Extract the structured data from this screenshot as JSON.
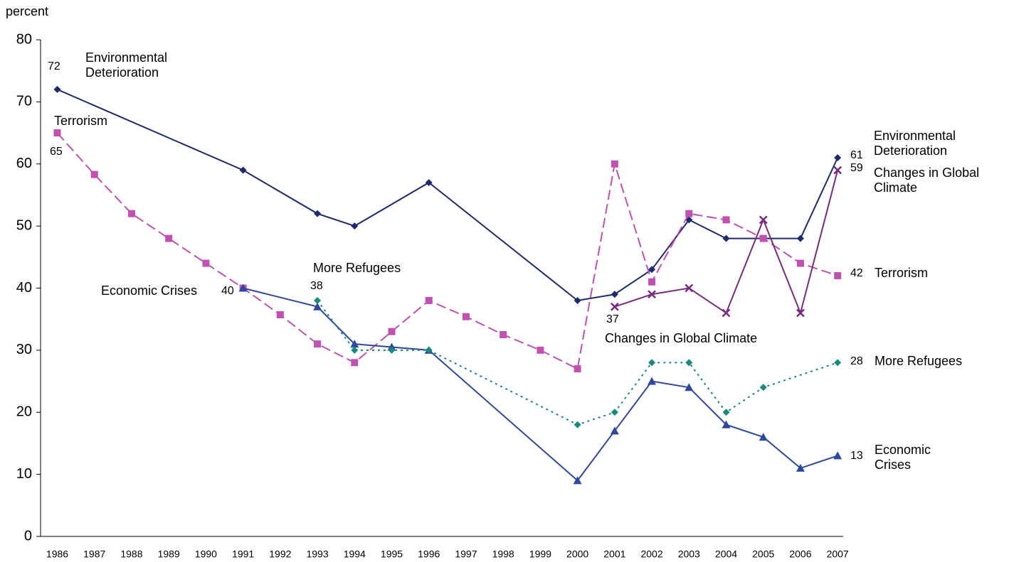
{
  "chart_data": {
    "type": "line",
    "y_label": "percent",
    "xlim": [
      1985.55,
      2007.15
    ],
    "ylim": [
      0,
      80
    ],
    "xticks": [
      1986,
      1987,
      1988,
      1989,
      1990,
      1991,
      1992,
      1993,
      1994,
      1995,
      1996,
      1997,
      1998,
      1999,
      2000,
      2001,
      2002,
      2003,
      2004,
      2005,
      2006,
      2007
    ],
    "yticks": [
      0,
      10,
      20,
      30,
      40,
      50,
      60,
      70,
      80
    ],
    "series": [
      {
        "name": "Environmental Deterioration",
        "color": "#1f2a6e",
        "dash": "solid",
        "marker": "diamond",
        "x": [
          1986,
          1991,
          1993,
          1994,
          1996,
          2000,
          2001,
          2002,
          2003,
          2004,
          2006,
          2007
        ],
        "values": [
          72,
          59,
          52,
          50,
          57,
          38,
          39,
          43,
          51,
          48,
          48,
          61
        ]
      },
      {
        "name": "Terrorism",
        "color": "#c150b0",
        "dash": "dashed",
        "marker": "square",
        "x": [
          1986,
          1987,
          1988,
          1989,
          1990,
          1991,
          1992,
          1993,
          1994,
          1995,
          1996,
          1997,
          1998,
          1999,
          2000,
          2001,
          2002,
          2003,
          2004,
          2005,
          2006,
          2007
        ],
        "values": [
          65,
          58.3,
          52,
          48,
          44,
          40,
          35.7,
          31,
          28,
          33,
          38,
          35.4,
          32.5,
          30,
          27,
          60,
          41,
          52,
          51,
          48,
          44,
          42
        ]
      },
      {
        "name": "Economic Crises",
        "color": "#2e47a0",
        "dash": "solid",
        "marker": "triangle",
        "x": [
          1991,
          1993,
          1994,
          1995,
          1996,
          2000,
          2001,
          2002,
          2003,
          2004,
          2005,
          2006,
          2007
        ],
        "values": [
          40,
          37,
          31,
          30.5,
          30,
          9,
          17,
          25,
          24,
          18,
          16,
          11,
          13
        ]
      },
      {
        "name": "More Refugees",
        "color": "#178a80",
        "dash": "dotted",
        "marker": "diamond",
        "x": [
          1993,
          1994,
          1995,
          1996,
          2000,
          2001,
          2002,
          2003,
          2004,
          2005,
          2007
        ],
        "values": [
          38,
          30,
          30,
          30,
          18,
          20,
          28,
          28,
          20,
          24,
          28
        ]
      },
      {
        "name": "Changes in Global Climate",
        "color": "#7a2a7e",
        "dash": "solid",
        "marker": "x",
        "x": [
          2001,
          2002,
          2003,
          2004,
          2005,
          2006,
          2007
        ],
        "values": [
          37,
          39,
          40,
          36,
          51,
          36,
          59
        ]
      }
    ]
  }
}
